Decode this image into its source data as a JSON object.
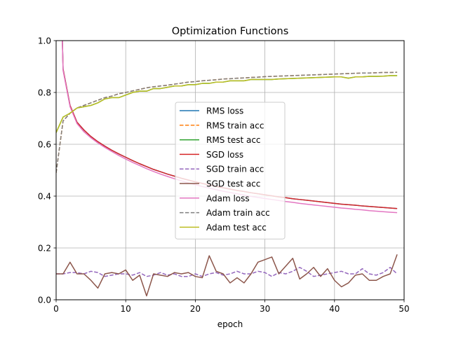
{
  "chart_data": {
    "type": "line",
    "title": "Optimization Functions",
    "xlabel": "epoch",
    "ylabel": "",
    "xlim": [
      0,
      50
    ],
    "ylim": [
      0.0,
      1.0
    ],
    "xticks": [
      0,
      10,
      20,
      30,
      40,
      50
    ],
    "yticks": [
      0.0,
      0.2,
      0.4,
      0.6,
      0.8,
      1.0
    ],
    "xtick_labels": [
      "0",
      "10",
      "20",
      "30",
      "40",
      "50"
    ],
    "ytick_labels": [
      "0.0",
      "0.2",
      "0.4",
      "0.6",
      "0.8",
      "1.0"
    ],
    "grid": true,
    "legend_position": "center-right",
    "x": [
      0,
      1,
      2,
      3,
      4,
      5,
      6,
      7,
      8,
      9,
      10,
      11,
      12,
      13,
      14,
      15,
      16,
      17,
      18,
      19,
      20,
      21,
      22,
      23,
      24,
      25,
      26,
      27,
      28,
      29,
      30,
      31,
      32,
      33,
      34,
      35,
      36,
      37,
      38,
      39,
      40,
      41,
      42,
      43,
      44,
      45,
      46,
      47,
      48,
      49
    ],
    "series": [
      {
        "name": "RMS loss",
        "color": "#1f77b4",
        "style": "solid",
        "values": [
          1.95,
          0.89,
          0.75,
          0.685,
          0.655,
          0.63,
          0.61,
          0.593,
          0.577,
          0.563,
          0.55,
          0.537,
          0.525,
          0.514,
          0.503,
          0.494,
          0.485,
          0.477,
          0.469,
          0.462,
          0.455,
          0.449,
          0.443,
          0.437,
          0.432,
          0.427,
          0.422,
          0.418,
          0.413,
          0.409,
          0.405,
          0.401,
          0.397,
          0.394,
          0.39,
          0.387,
          0.384,
          0.381,
          0.378,
          0.375,
          0.372,
          0.369,
          0.367,
          0.365,
          0.362,
          0.36,
          0.358,
          0.356,
          0.354,
          0.352
        ]
      },
      {
        "name": "RMS train acc",
        "color": "#ff7f0e",
        "style": "dashed",
        "values": [
          0.49,
          0.69,
          0.72,
          0.74,
          0.75,
          0.76,
          0.77,
          0.78,
          0.786,
          0.795,
          0.8,
          0.806,
          0.812,
          0.818,
          0.822,
          0.825,
          0.828,
          0.832,
          0.836,
          0.84,
          0.842,
          0.845,
          0.847,
          0.849,
          0.852,
          0.853,
          0.855,
          0.856,
          0.858,
          0.859,
          0.861,
          0.862,
          0.863,
          0.864,
          0.865,
          0.866,
          0.867,
          0.868,
          0.869,
          0.87,
          0.871,
          0.872,
          0.873,
          0.874,
          0.875,
          0.875,
          0.876,
          0.877,
          0.877,
          0.878
        ]
      },
      {
        "name": "RMS test acc",
        "color": "#2ca02c",
        "style": "solid",
        "values": [
          0.645,
          0.705,
          0.72,
          0.74,
          0.745,
          0.75,
          0.76,
          0.775,
          0.78,
          0.78,
          0.79,
          0.8,
          0.805,
          0.805,
          0.815,
          0.815,
          0.82,
          0.825,
          0.825,
          0.83,
          0.83,
          0.835,
          0.835,
          0.84,
          0.84,
          0.845,
          0.845,
          0.845,
          0.85,
          0.85,
          0.85,
          0.85,
          0.852,
          0.853,
          0.854,
          0.855,
          0.856,
          0.857,
          0.858,
          0.859,
          0.86,
          0.86,
          0.855,
          0.86,
          0.86,
          0.862,
          0.862,
          0.863,
          0.865,
          0.865
        ]
      },
      {
        "name": "SGD loss",
        "color": "#d62728",
        "style": "solid",
        "values": [
          1.95,
          0.89,
          0.75,
          0.685,
          0.655,
          0.63,
          0.61,
          0.593,
          0.577,
          0.563,
          0.55,
          0.537,
          0.525,
          0.514,
          0.503,
          0.494,
          0.485,
          0.477,
          0.469,
          0.462,
          0.455,
          0.449,
          0.443,
          0.437,
          0.432,
          0.427,
          0.422,
          0.418,
          0.413,
          0.409,
          0.405,
          0.401,
          0.397,
          0.394,
          0.39,
          0.387,
          0.384,
          0.381,
          0.378,
          0.375,
          0.372,
          0.369,
          0.367,
          0.365,
          0.362,
          0.36,
          0.358,
          0.356,
          0.354,
          0.352
        ]
      },
      {
        "name": "SGD train acc",
        "color": "#9467bd",
        "style": "dashed",
        "values": [
          0.1,
          0.1,
          0.105,
          0.105,
          0.1,
          0.11,
          0.105,
          0.09,
          0.095,
          0.1,
          0.1,
          0.095,
          0.105,
          0.09,
          0.095,
          0.105,
          0.095,
          0.1,
          0.09,
          0.09,
          0.1,
          0.09,
          0.1,
          0.105,
          0.095,
          0.1,
          0.11,
          0.1,
          0.1,
          0.11,
          0.105,
          0.09,
          0.105,
          0.1,
          0.11,
          0.125,
          0.11,
          0.09,
          0.095,
          0.1,
          0.105,
          0.11,
          0.1,
          0.1,
          0.12,
          0.1,
          0.095,
          0.105,
          0.125,
          0.1
        ]
      },
      {
        "name": "SGD test acc",
        "color": "#8c564b",
        "style": "solid",
        "values": [
          0.1,
          0.1,
          0.145,
          0.1,
          0.1,
          0.075,
          0.045,
          0.1,
          0.105,
          0.1,
          0.115,
          0.075,
          0.095,
          0.015,
          0.1,
          0.095,
          0.09,
          0.105,
          0.1,
          0.105,
          0.09,
          0.085,
          0.17,
          0.11,
          0.1,
          0.065,
          0.085,
          0.065,
          0.1,
          0.145,
          0.155,
          0.165,
          0.1,
          0.13,
          0.16,
          0.08,
          0.1,
          0.125,
          0.09,
          0.12,
          0.075,
          0.05,
          0.065,
          0.095,
          0.1,
          0.075,
          0.075,
          0.09,
          0.1,
          0.175
        ]
      },
      {
        "name": "Adam loss",
        "color": "#e377c2",
        "style": "solid",
        "values": [
          1.95,
          0.885,
          0.745,
          0.68,
          0.648,
          0.625,
          0.605,
          0.588,
          0.572,
          0.557,
          0.543,
          0.53,
          0.518,
          0.506,
          0.495,
          0.485,
          0.476,
          0.467,
          0.459,
          0.451,
          0.444,
          0.437,
          0.431,
          0.425,
          0.419,
          0.414,
          0.409,
          0.404,
          0.399,
          0.395,
          0.391,
          0.387,
          0.383,
          0.379,
          0.376,
          0.372,
          0.369,
          0.366,
          0.363,
          0.36,
          0.357,
          0.354,
          0.352,
          0.349,
          0.347,
          0.344,
          0.342,
          0.34,
          0.338,
          0.336
        ]
      },
      {
        "name": "Adam train acc",
        "color": "#7f7f7f",
        "style": "dashed",
        "values": [
          0.49,
          0.69,
          0.72,
          0.74,
          0.75,
          0.76,
          0.77,
          0.78,
          0.786,
          0.795,
          0.8,
          0.806,
          0.812,
          0.818,
          0.822,
          0.825,
          0.828,
          0.832,
          0.836,
          0.84,
          0.842,
          0.845,
          0.847,
          0.849,
          0.852,
          0.853,
          0.855,
          0.856,
          0.858,
          0.859,
          0.861,
          0.862,
          0.863,
          0.864,
          0.865,
          0.866,
          0.867,
          0.868,
          0.869,
          0.87,
          0.871,
          0.872,
          0.873,
          0.874,
          0.875,
          0.875,
          0.876,
          0.877,
          0.877,
          0.878
        ]
      },
      {
        "name": "Adam test acc",
        "color": "#bcbd22",
        "style": "solid",
        "values": [
          0.645,
          0.705,
          0.72,
          0.74,
          0.745,
          0.75,
          0.76,
          0.775,
          0.78,
          0.78,
          0.79,
          0.8,
          0.805,
          0.805,
          0.815,
          0.815,
          0.82,
          0.825,
          0.825,
          0.83,
          0.83,
          0.835,
          0.835,
          0.84,
          0.84,
          0.845,
          0.845,
          0.845,
          0.85,
          0.85,
          0.85,
          0.85,
          0.852,
          0.853,
          0.854,
          0.855,
          0.856,
          0.857,
          0.858,
          0.859,
          0.86,
          0.86,
          0.855,
          0.86,
          0.86,
          0.862,
          0.862,
          0.863,
          0.865,
          0.865
        ]
      }
    ]
  }
}
